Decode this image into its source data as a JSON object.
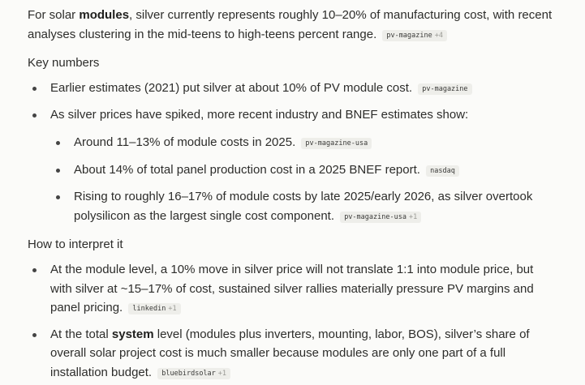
{
  "intro": {
    "pre": "For solar ",
    "bold": "modules",
    "post": ", silver currently represents roughly 10–20% of manufacturing cost, with recent analyses clustering in the mid-teens to high-teens percent range.",
    "source": "pv-magazine",
    "source_more": "+4"
  },
  "key_numbers": {
    "heading": "Key numbers",
    "items": [
      {
        "text": "Earlier estimates (2021) put silver at about 10% of PV module cost.",
        "source": "pv-magazine"
      },
      {
        "text": "As silver prices have spiked, more recent industry and BNEF estimates show:",
        "subitems": [
          {
            "text": "Around 11–13% of module costs in 2025.",
            "source": "pv-magazine-usa"
          },
          {
            "text": "About 14% of total panel production cost in a 2025 BNEF report.",
            "source": "nasdaq"
          },
          {
            "text": "Rising to roughly 16–17% of module costs by late 2025/early 2026, as silver overtook polysilicon as the largest single cost component.",
            "source": "pv-magazine-usa",
            "source_more": "+1"
          }
        ]
      }
    ]
  },
  "interpret": {
    "heading": "How to interpret it",
    "items": [
      {
        "text": "At the module level, a 10% move in silver price will not translate 1:1 into module price, but with silver at ~15–17% of cost, sustained silver rallies materially pressure PV margins and panel pricing.",
        "source": "linkedin",
        "source_more": "+1"
      },
      {
        "pre": "At the total ",
        "bold": "system",
        "post": " level (modules plus inverters, mounting, labor, BOS), silver’s share of overall solar project cost is much smaller because modules are only one part of a full installation budget.",
        "source": "bluebirdsolar",
        "source_more": "+1"
      }
    ]
  }
}
